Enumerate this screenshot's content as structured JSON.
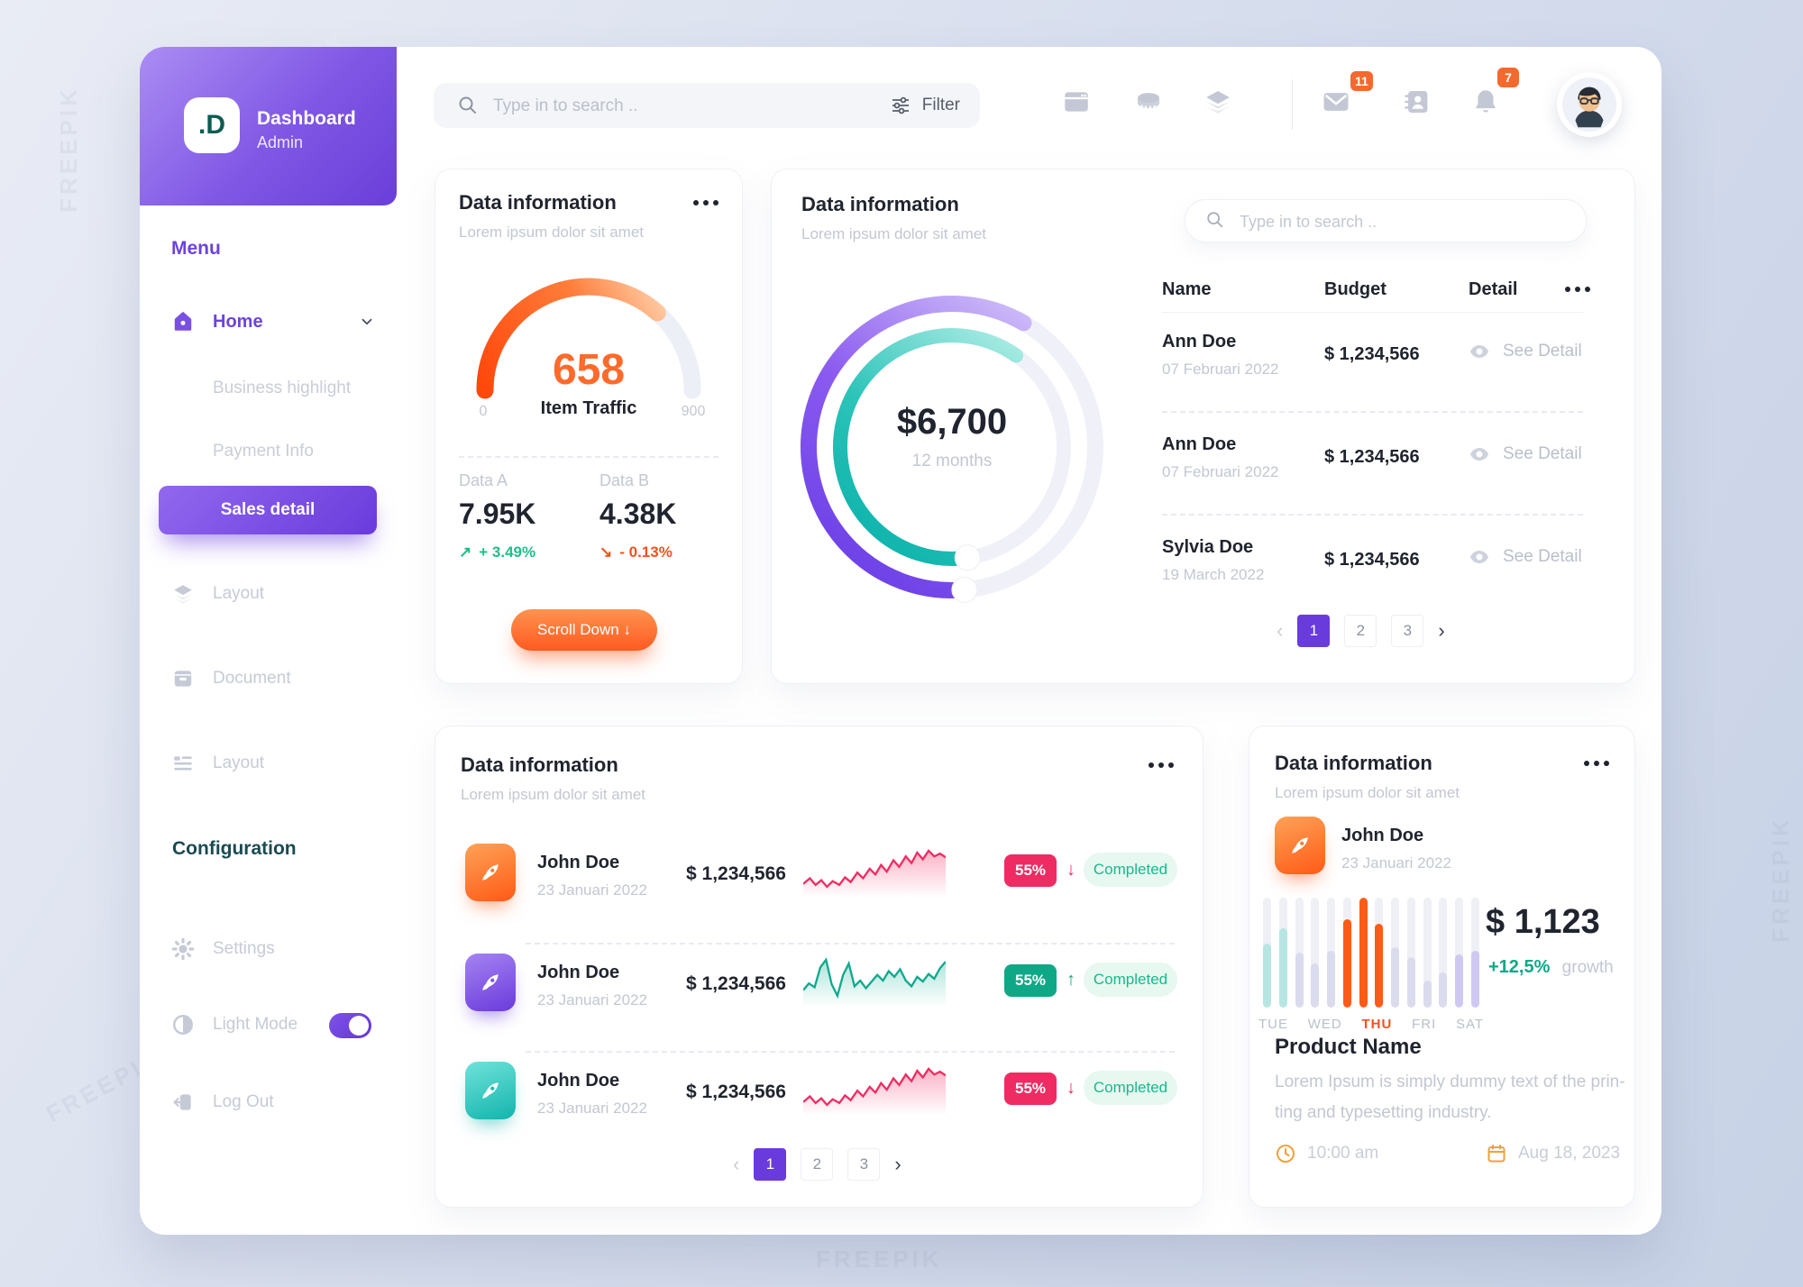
{
  "watermark": {
    "text": "FREEPIK"
  },
  "sidebar": {
    "logo": {
      "initials": ".D",
      "title": "Dashboard",
      "subtitle": "Admin"
    },
    "menu_label": "Menu",
    "home": {
      "label": "Home"
    },
    "submenu": [
      {
        "label": "Business highlight"
      },
      {
        "label": "Payment Info"
      },
      {
        "label": "Sales detail"
      }
    ],
    "items": [
      {
        "label": "Layout"
      },
      {
        "label": "Document"
      },
      {
        "label": "Layout"
      }
    ],
    "config_label": "Configuration",
    "settings_label": "Settings",
    "light_mode_label": "Light Mode",
    "logout_label": "Log Out"
  },
  "topbar": {
    "search_placeholder": "Type in to search ..",
    "filter_label": "Filter",
    "mail_badge": "11",
    "bell_badge": "7"
  },
  "icons": {
    "search": "magnifier",
    "filter": "sliders",
    "window": "browser-window",
    "database": "coin-stack",
    "layers": "stacked-layers",
    "mail": "envelope",
    "contacts": "address-book",
    "bell": "notification-bell",
    "home": "house",
    "document": "archive-box",
    "layout_list": "list-rows",
    "settings": "gear",
    "light_mode": "half-contrast-circle",
    "logout": "exit-door",
    "eye": "eye",
    "rocket": "rocket",
    "clock": "clock",
    "calendar": "calendar"
  },
  "cards": {
    "gauge": {
      "title": "Data information",
      "subtitle": "Lorem ipsum dolor sit amet",
      "value": "658",
      "label": "Item Traffic",
      "min": "0",
      "max": "900",
      "stats": [
        {
          "name": "Data A",
          "value": "7.95K",
          "change": "+ 3.49%",
          "direction": "up"
        },
        {
          "name": "Data B",
          "value": "4.38K",
          "change": "- 0.13%",
          "direction": "down"
        }
      ],
      "button_label": "Scroll Down ↓"
    },
    "donut": {
      "title": "Data information",
      "subtitle": "Lorem ipsum dolor sit amet",
      "search_placeholder": "Type in to search ..",
      "center_value": "$6,700",
      "center_label": "12 months",
      "table": {
        "headers": [
          "Name",
          "Budget",
          "Detail"
        ],
        "rows": [
          {
            "name": "Ann Doe",
            "date": "07 Februari 2022",
            "budget": "$ 1,234,566",
            "detail": "See Detail"
          },
          {
            "name": "Ann Doe",
            "date": "07 Februari 2022",
            "budget": "$ 1,234,566",
            "detail": "See Detail"
          },
          {
            "name": "Sylvia Doe",
            "date": "19 March 2022",
            "budget": "$ 1,234,566",
            "detail": "See Detail"
          }
        ]
      },
      "pagination": {
        "prev": "‹",
        "pages": [
          "1",
          "2",
          "3"
        ],
        "next": "›",
        "active": "1"
      }
    },
    "list": {
      "title": "Data information",
      "subtitle": "Lorem ipsum dolor sit amet",
      "rows": [
        {
          "name": "John Doe",
          "date": "23 Januari 2022",
          "amount": "$ 1,234,566",
          "percent": "55%",
          "trend": "down",
          "status": "Completed",
          "icon_color": "orange",
          "spark_color": "pink"
        },
        {
          "name": "John Doe",
          "date": "23 Januari 2022",
          "amount": "$ 1,234,566",
          "percent": "55%",
          "trend": "up",
          "status": "Completed",
          "icon_color": "purple",
          "spark_color": "green"
        },
        {
          "name": "John Doe",
          "date": "23 Januari 2022",
          "amount": "$ 1,234,566",
          "percent": "55%",
          "trend": "down",
          "status": "Completed",
          "icon_color": "teal",
          "spark_color": "pink"
        }
      ],
      "pagination": {
        "prev": "‹",
        "pages": [
          "1",
          "2",
          "3"
        ],
        "next": "›",
        "active": "1"
      }
    },
    "product": {
      "title": "Data information",
      "subtitle": "Lorem ipsum dolor sit amet",
      "user": {
        "name": "John Doe",
        "date": "23 Januari 2022"
      },
      "amount": "$ 1,123",
      "growth": "+12,5%",
      "growth_label": "growth",
      "days": [
        "TUE",
        "WED",
        "THU",
        "FRI",
        "SAT"
      ],
      "active_day": "THU",
      "bars": [
        {
          "value": 58,
          "color": "teal"
        },
        {
          "value": 72,
          "color": "teal"
        },
        {
          "value": 50,
          "color": "lav"
        },
        {
          "value": 40,
          "color": "lav"
        },
        {
          "value": 52,
          "color": "lav"
        },
        {
          "value": 80,
          "color": "orange"
        },
        {
          "value": 100,
          "color": "orange"
        },
        {
          "value": 76,
          "color": "orange"
        },
        {
          "value": 55,
          "color": "lav"
        },
        {
          "value": 46,
          "color": "lav"
        },
        {
          "value": 25,
          "color": "lav"
        },
        {
          "value": 32,
          "color": "lav"
        },
        {
          "value": 48,
          "color": "purple"
        },
        {
          "value": 52,
          "color": "purple"
        }
      ],
      "product_name": "Product Name",
      "description_lines": [
        "Lorem Ipsum is simply dummy text of the prin-",
        "ting and typesetting industry."
      ],
      "time": "10:00 am",
      "date": "Aug 18, 2023"
    }
  },
  "chart_data": [
    {
      "type": "gauge",
      "title": "Item Traffic",
      "value": 658,
      "min": 0,
      "max": 900
    },
    {
      "type": "donut",
      "center": "$6,700",
      "period": "12 months",
      "series": [
        {
          "name": "outer-purple",
          "percent": 68
        },
        {
          "name": "inner-teal",
          "percent": 67
        }
      ]
    },
    {
      "type": "bar",
      "categories": [
        "TUE",
        "WED",
        "THU",
        "FRI",
        "SAT"
      ],
      "values": [
        58,
        72,
        50,
        40,
        52,
        80,
        100,
        76,
        55,
        46,
        25,
        32,
        48,
        52
      ],
      "highlight": "THU",
      "ylim": [
        0,
        100
      ]
    }
  ]
}
